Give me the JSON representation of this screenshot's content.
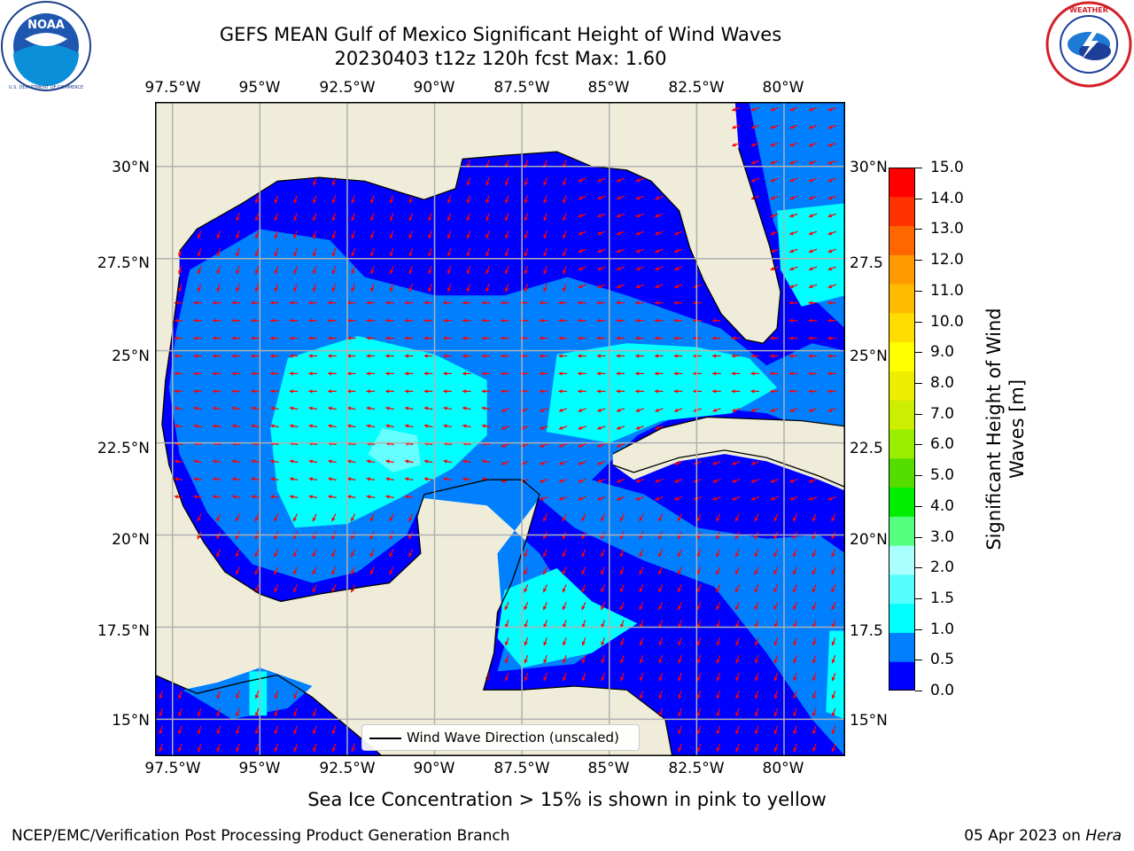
{
  "header": {
    "title_line1": "GEFS MEAN Gulf of Mexico Significant Height of Wind Waves",
    "title_line2": "20230403 t12z 120h fcst   Max: 1.60"
  },
  "logos": {
    "left": {
      "icon": "noaa-logo-icon",
      "text": "NOAA",
      "ring_text": "NATIONAL OCEANIC AND ATMOSPHERIC ADMINISTRATION · U.S. DEPARTMENT OF COMMERCE"
    },
    "right": {
      "icon": "nws-logo-icon",
      "ring_text": "NATIONAL WEATHER SERVICE"
    }
  },
  "map": {
    "lon_labels": [
      "97.5°W",
      "95°W",
      "92.5°W",
      "90°W",
      "87.5°W",
      "85°W",
      "82.5°W",
      "80°W"
    ],
    "lat_labels_left": [
      "30°N",
      "27.5°N",
      "25°N",
      "22.5°N",
      "20°N",
      "17.5°N",
      "15°N"
    ],
    "lat_labels_right": [
      "30°N",
      "27.5",
      "25°N",
      "22.5",
      "20°N",
      "17.5",
      "15°N"
    ],
    "lon_range": [
      -98,
      -78.25
    ],
    "lat_range": [
      14,
      31.75
    ],
    "lon_ticks": [
      -97.5,
      -95,
      -92.5,
      -90,
      -87.5,
      -85,
      -82.5,
      -80
    ],
    "lat_ticks": [
      30,
      27.5,
      25,
      22.5,
      20,
      17.5,
      15
    ],
    "colors": {
      "land": "#efedda",
      "bin_0_0p5": "#0000ff",
      "bin_0p5_1": "#0080ff",
      "bin_1_1p5": "#00ffff",
      "bin_1p5_2": "#66ffff",
      "arrows": "#ff0000",
      "coast": "#000000",
      "grid": "#b0b0b0"
    }
  },
  "legend": {
    "label": "Wind Wave Direction (unscaled)"
  },
  "colorbar": {
    "label": "Significant Height of Wind Waves [m]",
    "tick_labels": [
      "0.0",
      "0.5",
      "1.0",
      "1.5",
      "2.0",
      "3.0",
      "4.0",
      "5.0",
      "6.0",
      "7.0",
      "8.0",
      "9.0",
      "10.0",
      "11.0",
      "12.0",
      "13.0",
      "14.0",
      "15.0"
    ],
    "colors": [
      "#0000ff",
      "#0080ff",
      "#00ffff",
      "#55ffff",
      "#aaffff",
      "#55ff80",
      "#00ee00",
      "#55dd00",
      "#99ee00",
      "#ccee00",
      "#eeee00",
      "#ffff00",
      "#ffdd00",
      "#ffbb00",
      "#ff9900",
      "#ff6600",
      "#ff3300",
      "#ff0000"
    ]
  },
  "note": "Sea Ice Concentration > 15% is shown in pink to yellow",
  "footer": {
    "left": "NCEP/EMC/Verification Post Processing Product Generation Branch",
    "right_date": "05 Apr 2023 on ",
    "right_machine": "Hera"
  }
}
